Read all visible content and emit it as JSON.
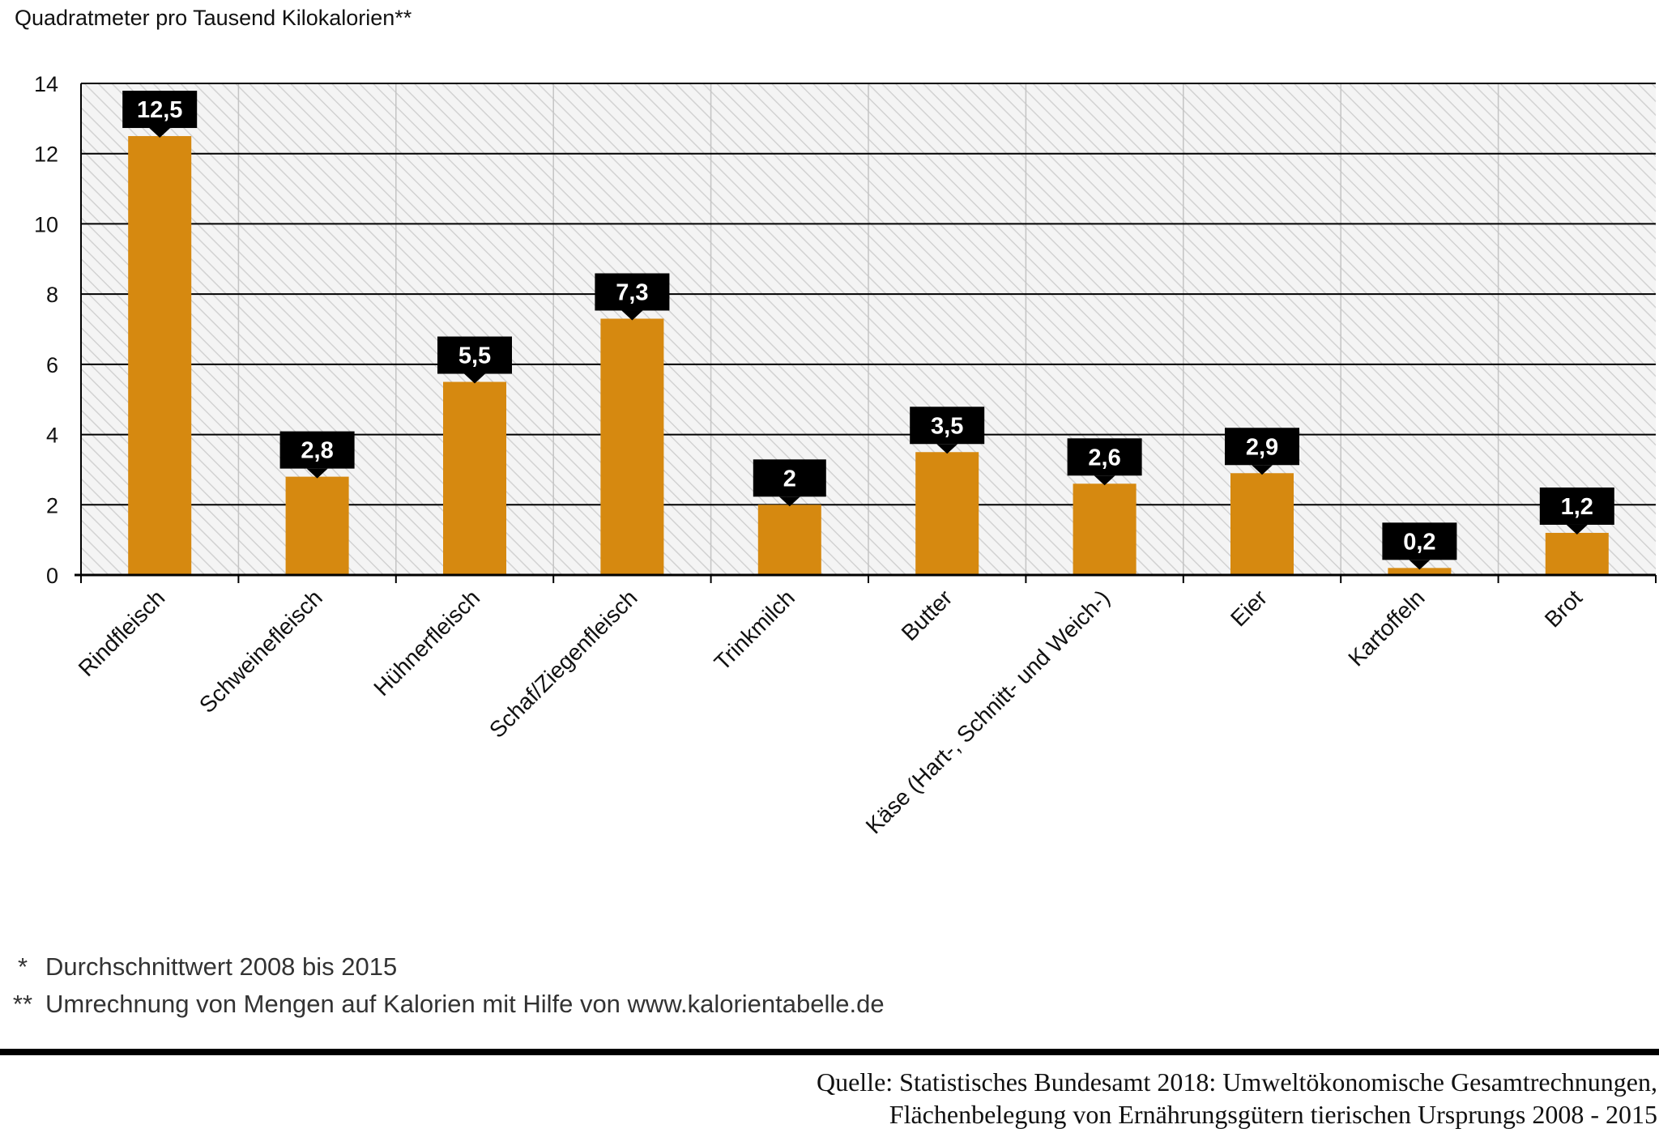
{
  "chart_data": {
    "type": "bar",
    "ylabel": "Quadratmeter pro Tausend Kilokalorien**",
    "categories": [
      "Rindfleisch",
      "Schweinefleisch",
      "Hühnerfleisch",
      "Schaf/Ziegenfleisch",
      "Trinkmilch",
      "Butter",
      "Käse (Hart-, Schnitt- und Weich-)",
      "Eier",
      "Kartoffeln",
      "Brot"
    ],
    "values": [
      12.5,
      2.8,
      5.5,
      7.3,
      2,
      3.5,
      2.6,
      2.9,
      0.2,
      1.2
    ],
    "data_labels": [
      "12,5",
      "2,8",
      "5,5",
      "7,3",
      "2",
      "3,5",
      "2,6",
      "2,9",
      "0,2",
      "1,2"
    ],
    "yticks": [
      0,
      2,
      4,
      6,
      8,
      10,
      12,
      14
    ],
    "ylim": [
      0,
      14
    ],
    "grid": true,
    "bar_color": "#d68910",
    "label_box_color": "#000000"
  },
  "footnotes": [
    {
      "mark": "*",
      "text": "Durchschnittwert 2008 bis 2015"
    },
    {
      "mark": "**",
      "text": "Umrechnung von Mengen auf Kalorien mit Hilfe von www.kalorientabelle.de"
    }
  ],
  "source": {
    "line1": "Quelle: Statistisches Bundesamt 2018: Umweltökonomische Gesamtrechnungen,",
    "line2": "Flächenbelegung von Ernährungsgütern tierischen Ursprungs 2008 - 2015"
  }
}
